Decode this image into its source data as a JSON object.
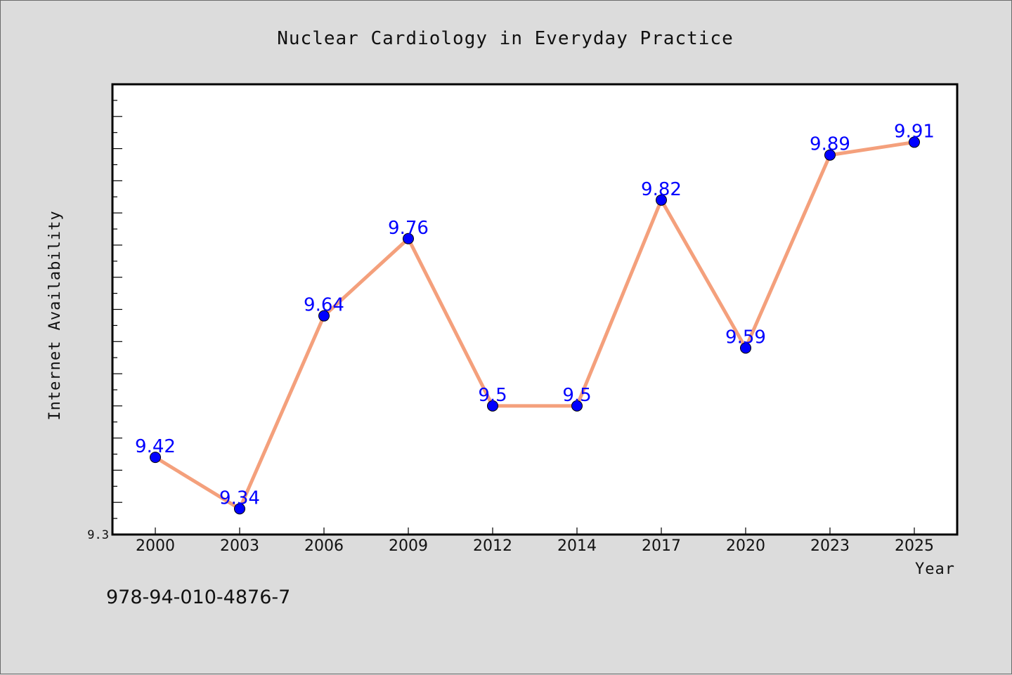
{
  "chart_data": {
    "type": "line",
    "title": "Nuclear Cardiology in Everyday Practice",
    "xlabel": "Year",
    "ylabel": "Internet Availability",
    "categories": [
      "2000",
      "2003",
      "2006",
      "2009",
      "2012",
      "2014",
      "2017",
      "2020",
      "2023",
      "2025"
    ],
    "series": [
      {
        "values": [
          9.42,
          9.34,
          9.64,
          9.76,
          9.5,
          9.5,
          9.82,
          9.59,
          9.89,
          9.91
        ],
        "line_color": "#f4a07c",
        "marker_color": "#0000ff"
      }
    ],
    "data_labels": [
      "9.42",
      "9.34",
      "9.64",
      "9.76",
      "9.5",
      "9.5",
      "9.82",
      "9.59",
      "9.89",
      "9.91"
    ],
    "ylim": [
      9.3,
      10.0
    ],
    "ytick_labels": [
      "9.3"
    ],
    "grid": false,
    "legend": "none"
  },
  "footer": {
    "isbn": "978-94-010-4876-7"
  }
}
